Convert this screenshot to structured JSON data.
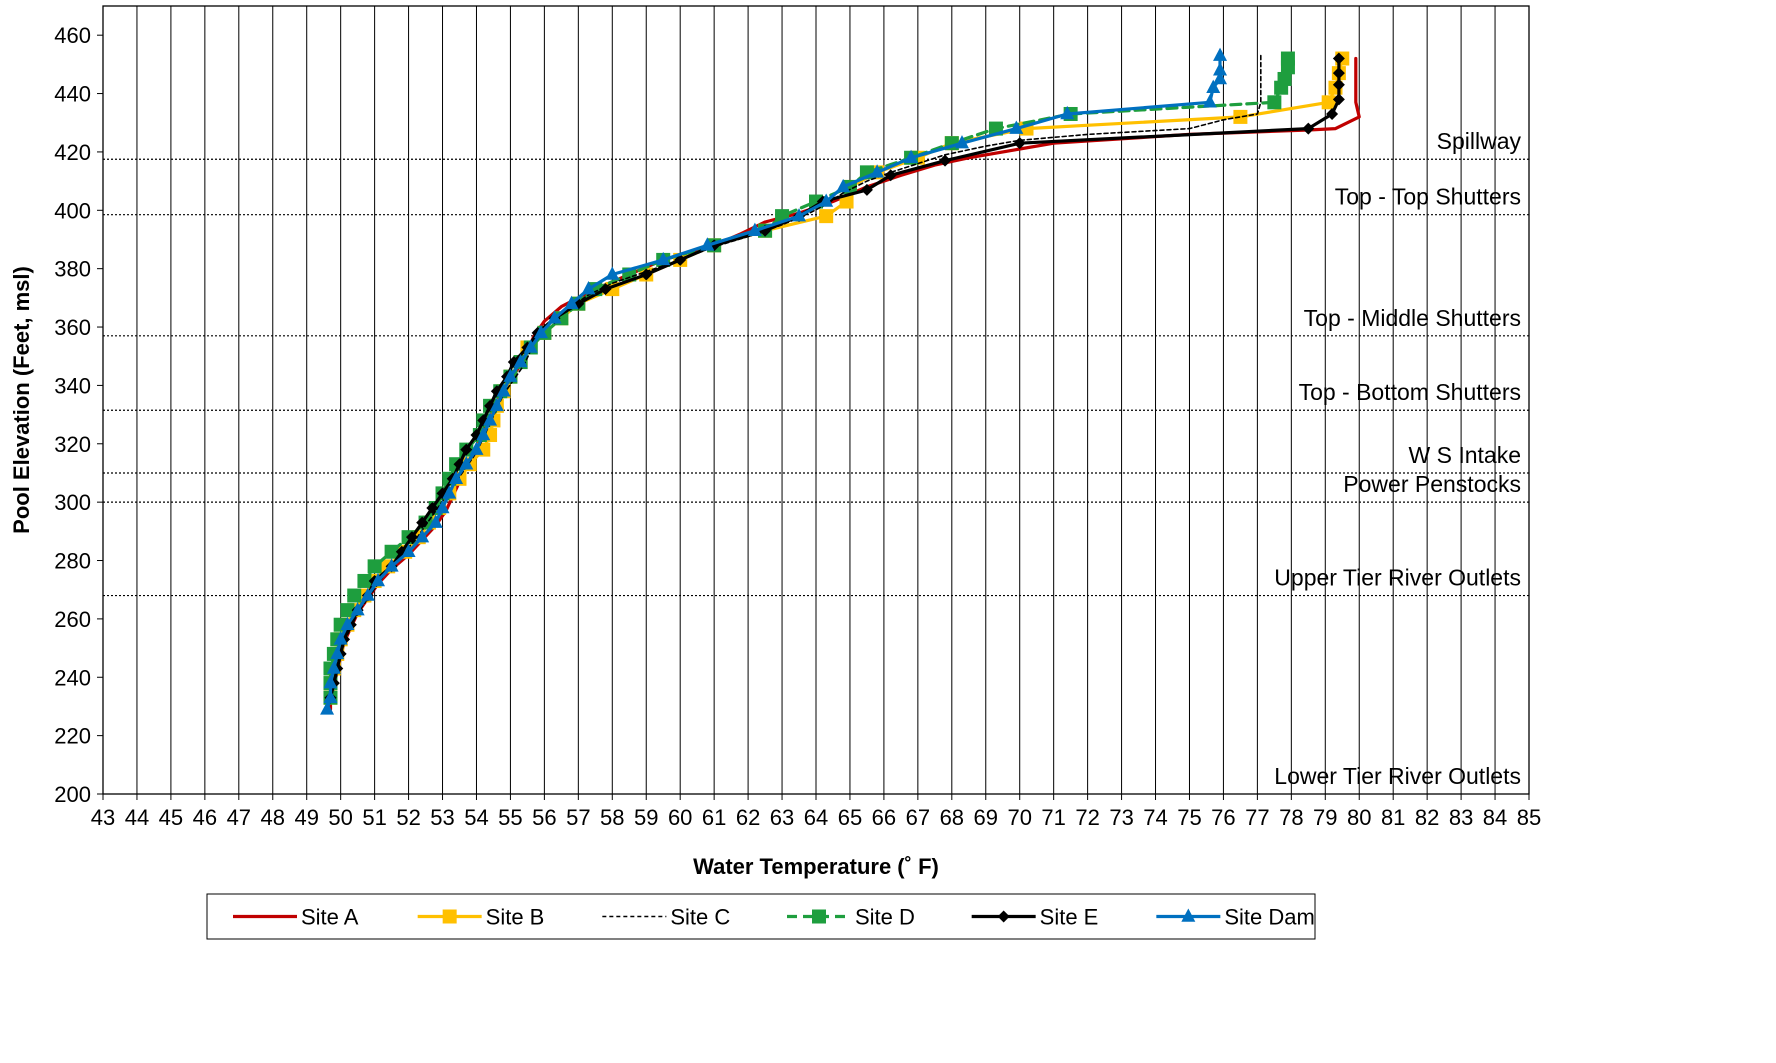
{
  "chart_data": {
    "type": "line",
    "xlabel": "Water Temperature (˚ F)",
    "ylabel": "Pool Elevation (Feet, msl)",
    "xlim": [
      43,
      85
    ],
    "ylim": [
      200,
      470
    ],
    "x_ticks": [
      43,
      44,
      45,
      46,
      47,
      48,
      49,
      50,
      51,
      52,
      53,
      54,
      55,
      56,
      57,
      58,
      59,
      60,
      61,
      62,
      63,
      64,
      65,
      66,
      67,
      68,
      69,
      70,
      71,
      72,
      73,
      74,
      75,
      76,
      77,
      78,
      79,
      80,
      81,
      82,
      83,
      84,
      85
    ],
    "y_ticks": [
      200,
      220,
      240,
      260,
      280,
      300,
      320,
      340,
      360,
      380,
      400,
      420,
      440,
      460
    ],
    "vertical_grid": true,
    "legend_position": "bottom",
    "reference_lines": [
      {
        "label": "Spillway",
        "y": 417.5
      },
      {
        "label": "Top - Top Shutters",
        "y": 398.5
      },
      {
        "label": "Top - Middle Shutters",
        "y": 357
      },
      {
        "label": "Top - Bottom Shutters",
        "y": 331.5
      },
      {
        "label": "W S Intake",
        "y": 310
      },
      {
        "label": "Power Penstocks",
        "y": 300
      },
      {
        "label": "Upper Tier River Outlets",
        "y": 268
      },
      {
        "label": "Lower Tier River Outlets",
        "y": 200
      }
    ],
    "series": [
      {
        "name": "Site A",
        "color": "#c00000",
        "marker": "none",
        "dash": "solid",
        "points": [
          [
            79.9,
            452
          ],
          [
            79.9,
            445
          ],
          [
            79.9,
            440
          ],
          [
            79.9,
            437
          ],
          [
            80,
            432
          ],
          [
            79.3,
            428
          ],
          [
            78.5,
            427.5
          ],
          [
            75,
            426
          ],
          [
            71,
            423
          ],
          [
            70,
            421
          ],
          [
            68.5,
            418
          ],
          [
            67.5,
            415.5
          ],
          [
            66.5,
            412
          ],
          [
            65.5,
            408
          ],
          [
            64.5,
            403
          ],
          [
            63.5,
            399
          ],
          [
            62.5,
            396
          ],
          [
            61.8,
            392
          ],
          [
            61,
            388
          ],
          [
            59.5,
            383
          ],
          [
            58.5,
            378
          ],
          [
            57.5,
            373
          ],
          [
            56.5,
            367
          ],
          [
            56,
            362
          ],
          [
            55.7,
            357
          ],
          [
            55.5,
            352
          ],
          [
            55.3,
            347
          ],
          [
            55,
            342
          ],
          [
            54.7,
            337
          ],
          [
            54.5,
            332
          ],
          [
            54.3,
            327
          ],
          [
            54.1,
            322
          ],
          [
            53.9,
            317
          ],
          [
            53.7,
            312
          ],
          [
            53.5,
            307
          ],
          [
            53.3,
            302
          ],
          [
            53.1,
            297
          ],
          [
            52.8,
            292
          ],
          [
            52.4,
            287
          ],
          [
            52,
            282
          ],
          [
            51.5,
            277
          ],
          [
            51.1,
            272
          ],
          [
            50.8,
            267
          ],
          [
            50.5,
            262
          ],
          [
            50.3,
            257
          ],
          [
            50.1,
            252
          ],
          [
            50,
            247
          ],
          [
            49.9,
            242
          ],
          [
            49.8,
            237
          ],
          [
            49.7,
            232
          ],
          [
            49.7,
            229
          ]
        ]
      },
      {
        "name": "Site B",
        "color": "#ffc000",
        "marker": "square",
        "dash": "solid",
        "points": [
          [
            79.5,
            452
          ],
          [
            79.4,
            447
          ],
          [
            79.3,
            442
          ],
          [
            79.1,
            437
          ],
          [
            76.5,
            432
          ],
          [
            70.2,
            428
          ],
          [
            68,
            423
          ],
          [
            67,
            418
          ],
          [
            65.8,
            413
          ],
          [
            65,
            408
          ],
          [
            64.9,
            403
          ],
          [
            64.3,
            398
          ],
          [
            62.5,
            393
          ],
          [
            61,
            388
          ],
          [
            60,
            383
          ],
          [
            59,
            378
          ],
          [
            58,
            373
          ],
          [
            57,
            368
          ],
          [
            56.5,
            363
          ],
          [
            56,
            358
          ],
          [
            55.5,
            353
          ],
          [
            55.3,
            348
          ],
          [
            55,
            343
          ],
          [
            54.8,
            338
          ],
          [
            54.6,
            333
          ],
          [
            54.5,
            328
          ],
          [
            54.4,
            323
          ],
          [
            54.2,
            318
          ],
          [
            53.8,
            313
          ],
          [
            53.5,
            308
          ],
          [
            53.2,
            303
          ],
          [
            52.9,
            298
          ],
          [
            52.6,
            293
          ],
          [
            52.3,
            288
          ],
          [
            51.9,
            283
          ],
          [
            51.4,
            278
          ],
          [
            51,
            273
          ],
          [
            50.7,
            268
          ],
          [
            50.4,
            263
          ],
          [
            50.2,
            258
          ],
          [
            50,
            253
          ],
          [
            49.9,
            248
          ],
          [
            49.8,
            243
          ],
          [
            49.7,
            238
          ],
          [
            49.7,
            233
          ]
        ]
      },
      {
        "name": "Site C",
        "color": "#000000",
        "marker": "none",
        "dash": "dash",
        "points": [
          [
            77.1,
            453
          ],
          [
            77.1,
            445
          ],
          [
            77.1,
            437
          ],
          [
            77,
            433
          ],
          [
            76,
            431
          ],
          [
            75,
            428
          ],
          [
            72,
            426
          ],
          [
            70,
            424
          ],
          [
            69,
            422
          ],
          [
            67.8,
            419
          ],
          [
            67,
            416
          ],
          [
            66.2,
            413
          ],
          [
            65.5,
            410
          ],
          [
            64.8,
            406
          ],
          [
            64.3,
            402
          ],
          [
            63.8,
            399
          ],
          [
            63,
            395
          ],
          [
            62,
            391
          ],
          [
            61,
            387.5
          ],
          [
            60,
            383
          ],
          [
            59,
            379
          ],
          [
            58,
            375
          ],
          [
            57.3,
            371
          ],
          [
            56.8,
            367
          ],
          [
            56.3,
            363
          ],
          [
            56,
            360
          ],
          [
            55.8,
            357
          ],
          [
            55.6,
            352
          ],
          [
            55.4,
            347
          ],
          [
            55.1,
            342
          ],
          [
            54.8,
            337
          ],
          [
            54.6,
            332
          ],
          [
            54.4,
            327
          ],
          [
            54.2,
            322
          ],
          [
            54,
            317
          ],
          [
            53.7,
            312
          ],
          [
            53.4,
            307
          ],
          [
            53.1,
            302
          ],
          [
            52.8,
            297
          ],
          [
            52.5,
            292
          ],
          [
            52.2,
            287
          ],
          [
            51.8,
            282
          ],
          [
            51.4,
            277
          ],
          [
            51.1,
            272
          ],
          [
            50.8,
            267
          ],
          [
            50.5,
            262
          ],
          [
            50.3,
            257
          ],
          [
            50.1,
            252
          ],
          [
            50,
            247
          ],
          [
            49.9,
            242
          ],
          [
            49.8,
            237
          ],
          [
            49.7,
            232
          ]
        ]
      },
      {
        "name": "Site D",
        "color": "#1e9e3e",
        "marker": "square",
        "dash": "dash",
        "points": [
          [
            77.9,
            452
          ],
          [
            77.9,
            449
          ],
          [
            77.8,
            445
          ],
          [
            77.7,
            442
          ],
          [
            77.5,
            437
          ],
          [
            71.5,
            433
          ],
          [
            69.3,
            428
          ],
          [
            68,
            423
          ],
          [
            66.8,
            418
          ],
          [
            65.5,
            413
          ],
          [
            65,
            408
          ],
          [
            64,
            403
          ],
          [
            63,
            398
          ],
          [
            62.5,
            393
          ],
          [
            61,
            388
          ],
          [
            59.5,
            383
          ],
          [
            58.5,
            378
          ],
          [
            57.5,
            373
          ],
          [
            57,
            368
          ],
          [
            56.5,
            363
          ],
          [
            56,
            358
          ],
          [
            55.6,
            353
          ],
          [
            55.3,
            348
          ],
          [
            55,
            343
          ],
          [
            54.7,
            338
          ],
          [
            54.4,
            333
          ],
          [
            54.2,
            328
          ],
          [
            54.1,
            323
          ],
          [
            53.7,
            318
          ],
          [
            53.4,
            313
          ],
          [
            53.2,
            308
          ],
          [
            53,
            303
          ],
          [
            52.8,
            298
          ],
          [
            52.5,
            293
          ],
          [
            52,
            288
          ],
          [
            51.5,
            283
          ],
          [
            51,
            278
          ],
          [
            50.7,
            273
          ],
          [
            50.4,
            268
          ],
          [
            50.2,
            263
          ],
          [
            50,
            258
          ],
          [
            49.9,
            253
          ],
          [
            49.8,
            248
          ],
          [
            49.7,
            243
          ],
          [
            49.7,
            238
          ],
          [
            49.7,
            233
          ]
        ]
      },
      {
        "name": "Site E",
        "color": "#000000",
        "marker": "diamond",
        "dash": "solid",
        "points": [
          [
            79.4,
            452
          ],
          [
            79.4,
            447
          ],
          [
            79.4,
            443
          ],
          [
            79.4,
            438
          ],
          [
            79.2,
            433
          ],
          [
            78.5,
            428
          ],
          [
            70,
            423
          ],
          [
            67.8,
            417
          ],
          [
            66.2,
            412
          ],
          [
            65.5,
            407
          ],
          [
            64.2,
            403
          ],
          [
            63.5,
            398
          ],
          [
            62.5,
            393
          ],
          [
            61,
            388
          ],
          [
            60,
            383
          ],
          [
            59,
            378
          ],
          [
            57.8,
            373
          ],
          [
            57,
            368
          ],
          [
            56.3,
            363
          ],
          [
            55.8,
            358
          ],
          [
            55.5,
            353
          ],
          [
            55.1,
            348
          ],
          [
            54.9,
            343
          ],
          [
            54.6,
            338
          ],
          [
            54.4,
            333
          ],
          [
            54.2,
            328
          ],
          [
            54,
            323
          ],
          [
            53.7,
            318
          ],
          [
            53.5,
            313
          ],
          [
            53.3,
            308
          ],
          [
            53,
            303
          ],
          [
            52.7,
            298
          ],
          [
            52.4,
            293
          ],
          [
            52.1,
            288
          ],
          [
            51.8,
            283
          ],
          [
            51.5,
            278
          ],
          [
            51,
            273
          ],
          [
            50.8,
            268
          ],
          [
            50.5,
            263
          ],
          [
            50.3,
            258
          ],
          [
            50.1,
            253
          ],
          [
            50,
            248
          ],
          [
            49.9,
            243
          ],
          [
            49.8,
            238
          ],
          [
            49.7,
            233
          ]
        ]
      },
      {
        "name": "Site Dam",
        "color": "#0070c0",
        "marker": "triangle",
        "dash": "solid",
        "points": [
          [
            75.9,
            453
          ],
          [
            75.9,
            448
          ],
          [
            75.9,
            445
          ],
          [
            75.7,
            442
          ],
          [
            75.6,
            437
          ],
          [
            71.4,
            433
          ],
          [
            69.9,
            428
          ],
          [
            68.3,
            423
          ],
          [
            66.8,
            418
          ],
          [
            65.8,
            413
          ],
          [
            64.8,
            408
          ],
          [
            64.3,
            403
          ],
          [
            63.5,
            398
          ],
          [
            62.2,
            393
          ],
          [
            60.8,
            388
          ],
          [
            59.5,
            383
          ],
          [
            58,
            378
          ],
          [
            57.3,
            373
          ],
          [
            56.8,
            368
          ],
          [
            56.3,
            363
          ],
          [
            55.9,
            358
          ],
          [
            55.6,
            353
          ],
          [
            55.3,
            348
          ],
          [
            55,
            343
          ],
          [
            54.8,
            338
          ],
          [
            54.6,
            333
          ],
          [
            54.4,
            328
          ],
          [
            54.2,
            323
          ],
          [
            54,
            318
          ],
          [
            53.7,
            313
          ],
          [
            53.4,
            308
          ],
          [
            53.2,
            303
          ],
          [
            53,
            298
          ],
          [
            52.8,
            293
          ],
          [
            52.4,
            288
          ],
          [
            52,
            283
          ],
          [
            51.5,
            278
          ],
          [
            51.1,
            273
          ],
          [
            50.8,
            268
          ],
          [
            50.5,
            263
          ],
          [
            50.2,
            258
          ],
          [
            50,
            253
          ],
          [
            49.9,
            248
          ],
          [
            49.8,
            243
          ],
          [
            49.7,
            238
          ],
          [
            49.7,
            233
          ],
          [
            49.6,
            229
          ]
        ]
      }
    ]
  }
}
